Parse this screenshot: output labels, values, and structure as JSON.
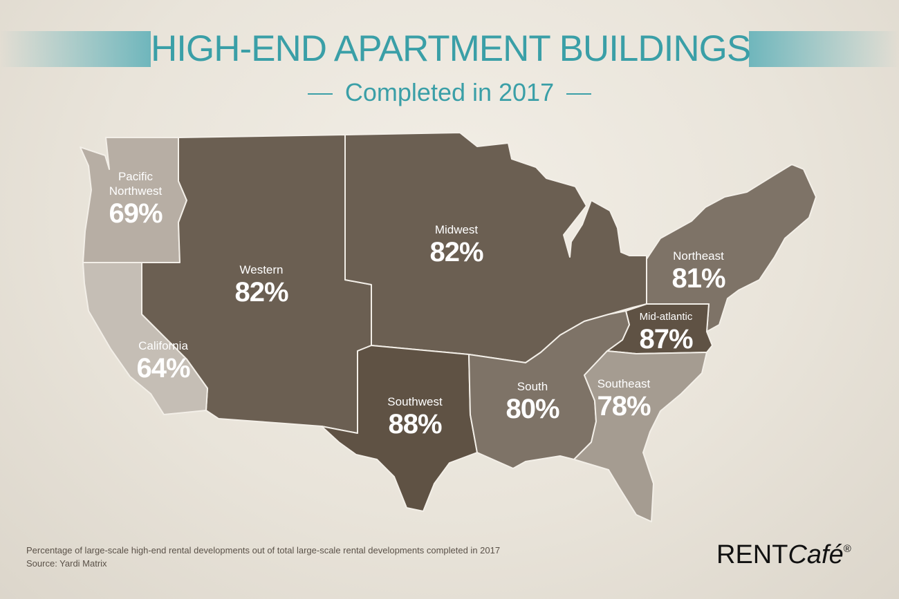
{
  "header": {
    "title": "HIGH-END APARTMENT BUILDINGS",
    "subtitle": "Completed in 2017"
  },
  "colors": {
    "accent_teal": "#3a9fa7",
    "region_dark": "#6b5f52",
    "region_darkest": "#5f5244",
    "region_mid": "#7e7367",
    "region_light": "#a59c91",
    "region_lightest": "#c4bdb4",
    "background": "#ece8df"
  },
  "regions": [
    {
      "name": "Pacific\nNorthwest",
      "value": "69%",
      "percent": 69
    },
    {
      "name": "Western",
      "value": "82%",
      "percent": 82
    },
    {
      "name": "Midwest",
      "value": "82%",
      "percent": 82
    },
    {
      "name": "Northeast",
      "value": "81%",
      "percent": 81
    },
    {
      "name": "Mid-atlantic",
      "value": "87%",
      "percent": 87
    },
    {
      "name": "California",
      "value": "64%",
      "percent": 64
    },
    {
      "name": "Southwest",
      "value": "88%",
      "percent": 88
    },
    {
      "name": "South",
      "value": "80%",
      "percent": 80
    },
    {
      "name": "Southeast",
      "value": "78%",
      "percent": 78
    }
  ],
  "footer": {
    "note": "Percentage of large-scale high-end rental developments out of total large-scale rental developments completed in 2017",
    "source": "Source: Yardi Matrix",
    "brand_rent": "RENT",
    "brand_cafe": "Café",
    "brand_reg": "®"
  }
}
